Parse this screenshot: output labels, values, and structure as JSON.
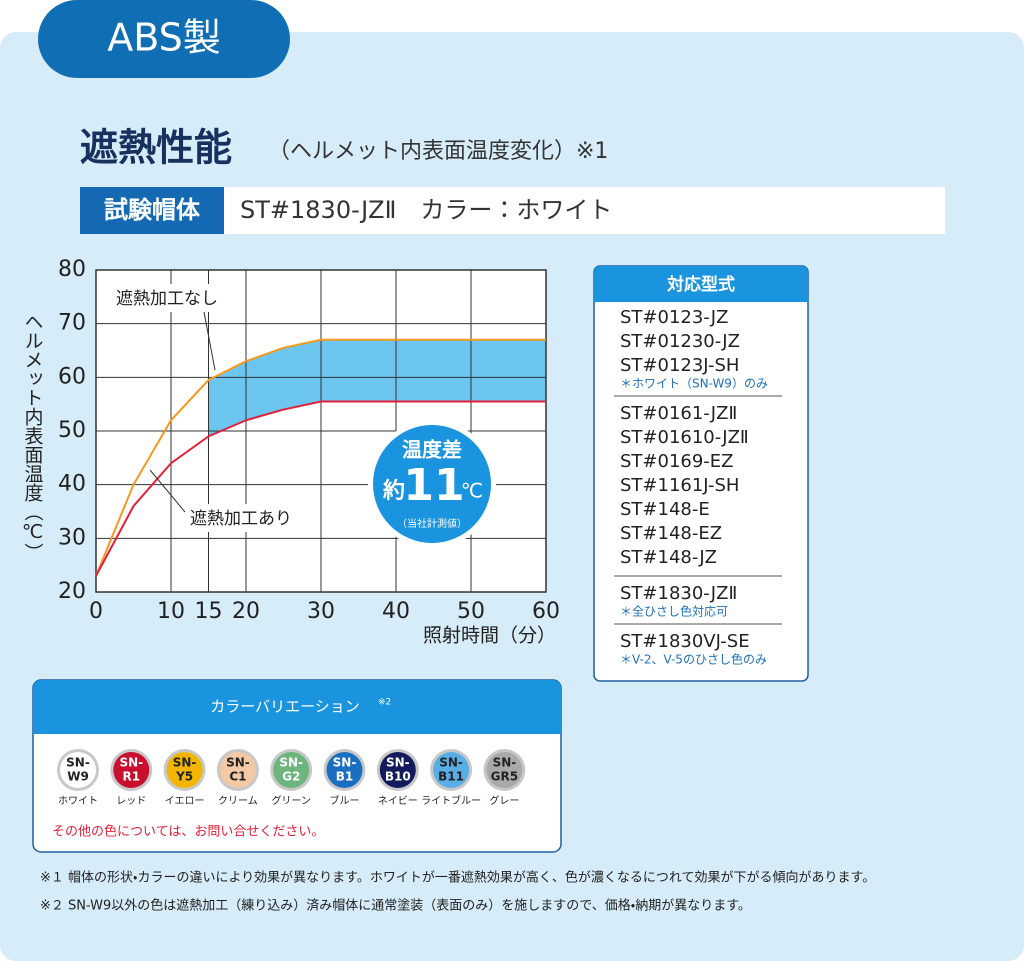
{
  "tab": "ABS製",
  "heading": {
    "title": "遮熱性能",
    "subtitle": "（ヘルメット内表面温度変化）※1"
  },
  "test_helmet": {
    "label": "試験帽体",
    "value": "ST#1830-JZⅡ　カラー：ホワイト"
  },
  "chart_data": {
    "type": "line",
    "x_label": "照射時間（分）",
    "y_label": "ヘルメット内表面温度（℃）",
    "x": [
      0,
      5,
      10,
      15,
      20,
      25,
      30,
      60
    ],
    "series": [
      {
        "name": "遮熱加工なし",
        "color": "#f39a1e",
        "values": [
          23,
          40,
          52,
          59.5,
          63,
          65.5,
          67,
          67
        ]
      },
      {
        "name": "遮熱加工あり",
        "color": "#e4203a",
        "values": [
          23,
          36,
          44,
          49,
          52,
          54,
          55.5,
          55.5
        ]
      }
    ],
    "shade_from": 15,
    "shade_color": "#6cc6f0",
    "xlim": [
      0,
      60
    ],
    "xticks": [
      0,
      10,
      15,
      20,
      30,
      40,
      50,
      60
    ],
    "ylim": [
      20,
      80
    ],
    "yticks": [
      20,
      30,
      40,
      50,
      60,
      70,
      80
    ],
    "grid": true,
    "badge": {
      "title": "温度差",
      "prefix": "約",
      "number": "11",
      "unit": "℃",
      "note": "（当社計測値）"
    }
  },
  "models": {
    "title": "対応型式",
    "groups": [
      {
        "items": [
          "ST#0123-JZ",
          "ST#01230-JZ",
          "ST#0123J-SH"
        ],
        "note": "＊ホワイト（SN-W9）のみ"
      },
      {
        "items": [
          "ST#0161-JZⅡ",
          "ST#01610-JZⅡ",
          "ST#0169-EZ",
          "ST#1161J-SH",
          "ST#148-E",
          "ST#148-EZ",
          "ST#148-JZ"
        ]
      },
      {
        "items": [
          "ST#1830-JZⅡ"
        ],
        "note": "＊全ひさし色対応可"
      },
      {
        "items": [
          "ST#1830VJ-SE"
        ],
        "note": "＊V-2、V-5のひさし色のみ"
      }
    ]
  },
  "colors": {
    "title": "カラーバリエーション",
    "title_mark": "※2",
    "items": [
      {
        "top": "SN-",
        "bottom": "W9",
        "name": "ホワイト",
        "color": "#ffffff",
        "text_color": "#222222"
      },
      {
        "top": "SN-",
        "bottom": "R1",
        "name": "レッド",
        "color": "#c8102e",
        "text_color": "#ffffff"
      },
      {
        "top": "SN-",
        "bottom": "Y5",
        "name": "イエロー",
        "color": "#f2b600",
        "text_color": "#222222"
      },
      {
        "top": "SN-",
        "bottom": "C1",
        "name": "クリーム",
        "color": "#f4c9a6",
        "text_color": "#222222"
      },
      {
        "top": "SN-",
        "bottom": "G2",
        "name": "グリーン",
        "color": "#6cb57c",
        "text_color": "#ffffff"
      },
      {
        "top": "SN-",
        "bottom": "B1",
        "name": "ブルー",
        "color": "#1b6fc0",
        "text_color": "#ffffff"
      },
      {
        "top": "SN-",
        "bottom": "B10",
        "name": "ネイビー",
        "color": "#141b5c",
        "text_color": "#ffffff"
      },
      {
        "top": "SN-",
        "bottom": "B11",
        "name": "ライトブルー",
        "color": "#5aaee6",
        "text_color": "#222222"
      },
      {
        "top": "SN-",
        "bottom": "GR5",
        "name": "グレー",
        "color": "#a9a9a9",
        "text_color": "#222222"
      }
    ],
    "note": "その他の色については、お問い合せください。"
  },
  "footnotes": [
    "※１ 帽体の形状・カラーの違いにより効果が異なります。ホワイトが一番遮熱効果が高く、色が濃くなるにつれて効果が下がる傾向があります。",
    "※２ SN-W9以外の色は遮熱加工（練り込み）済み帽体に通常塗装（表面のみ）を施しますので、価格・納期が異なります。"
  ]
}
